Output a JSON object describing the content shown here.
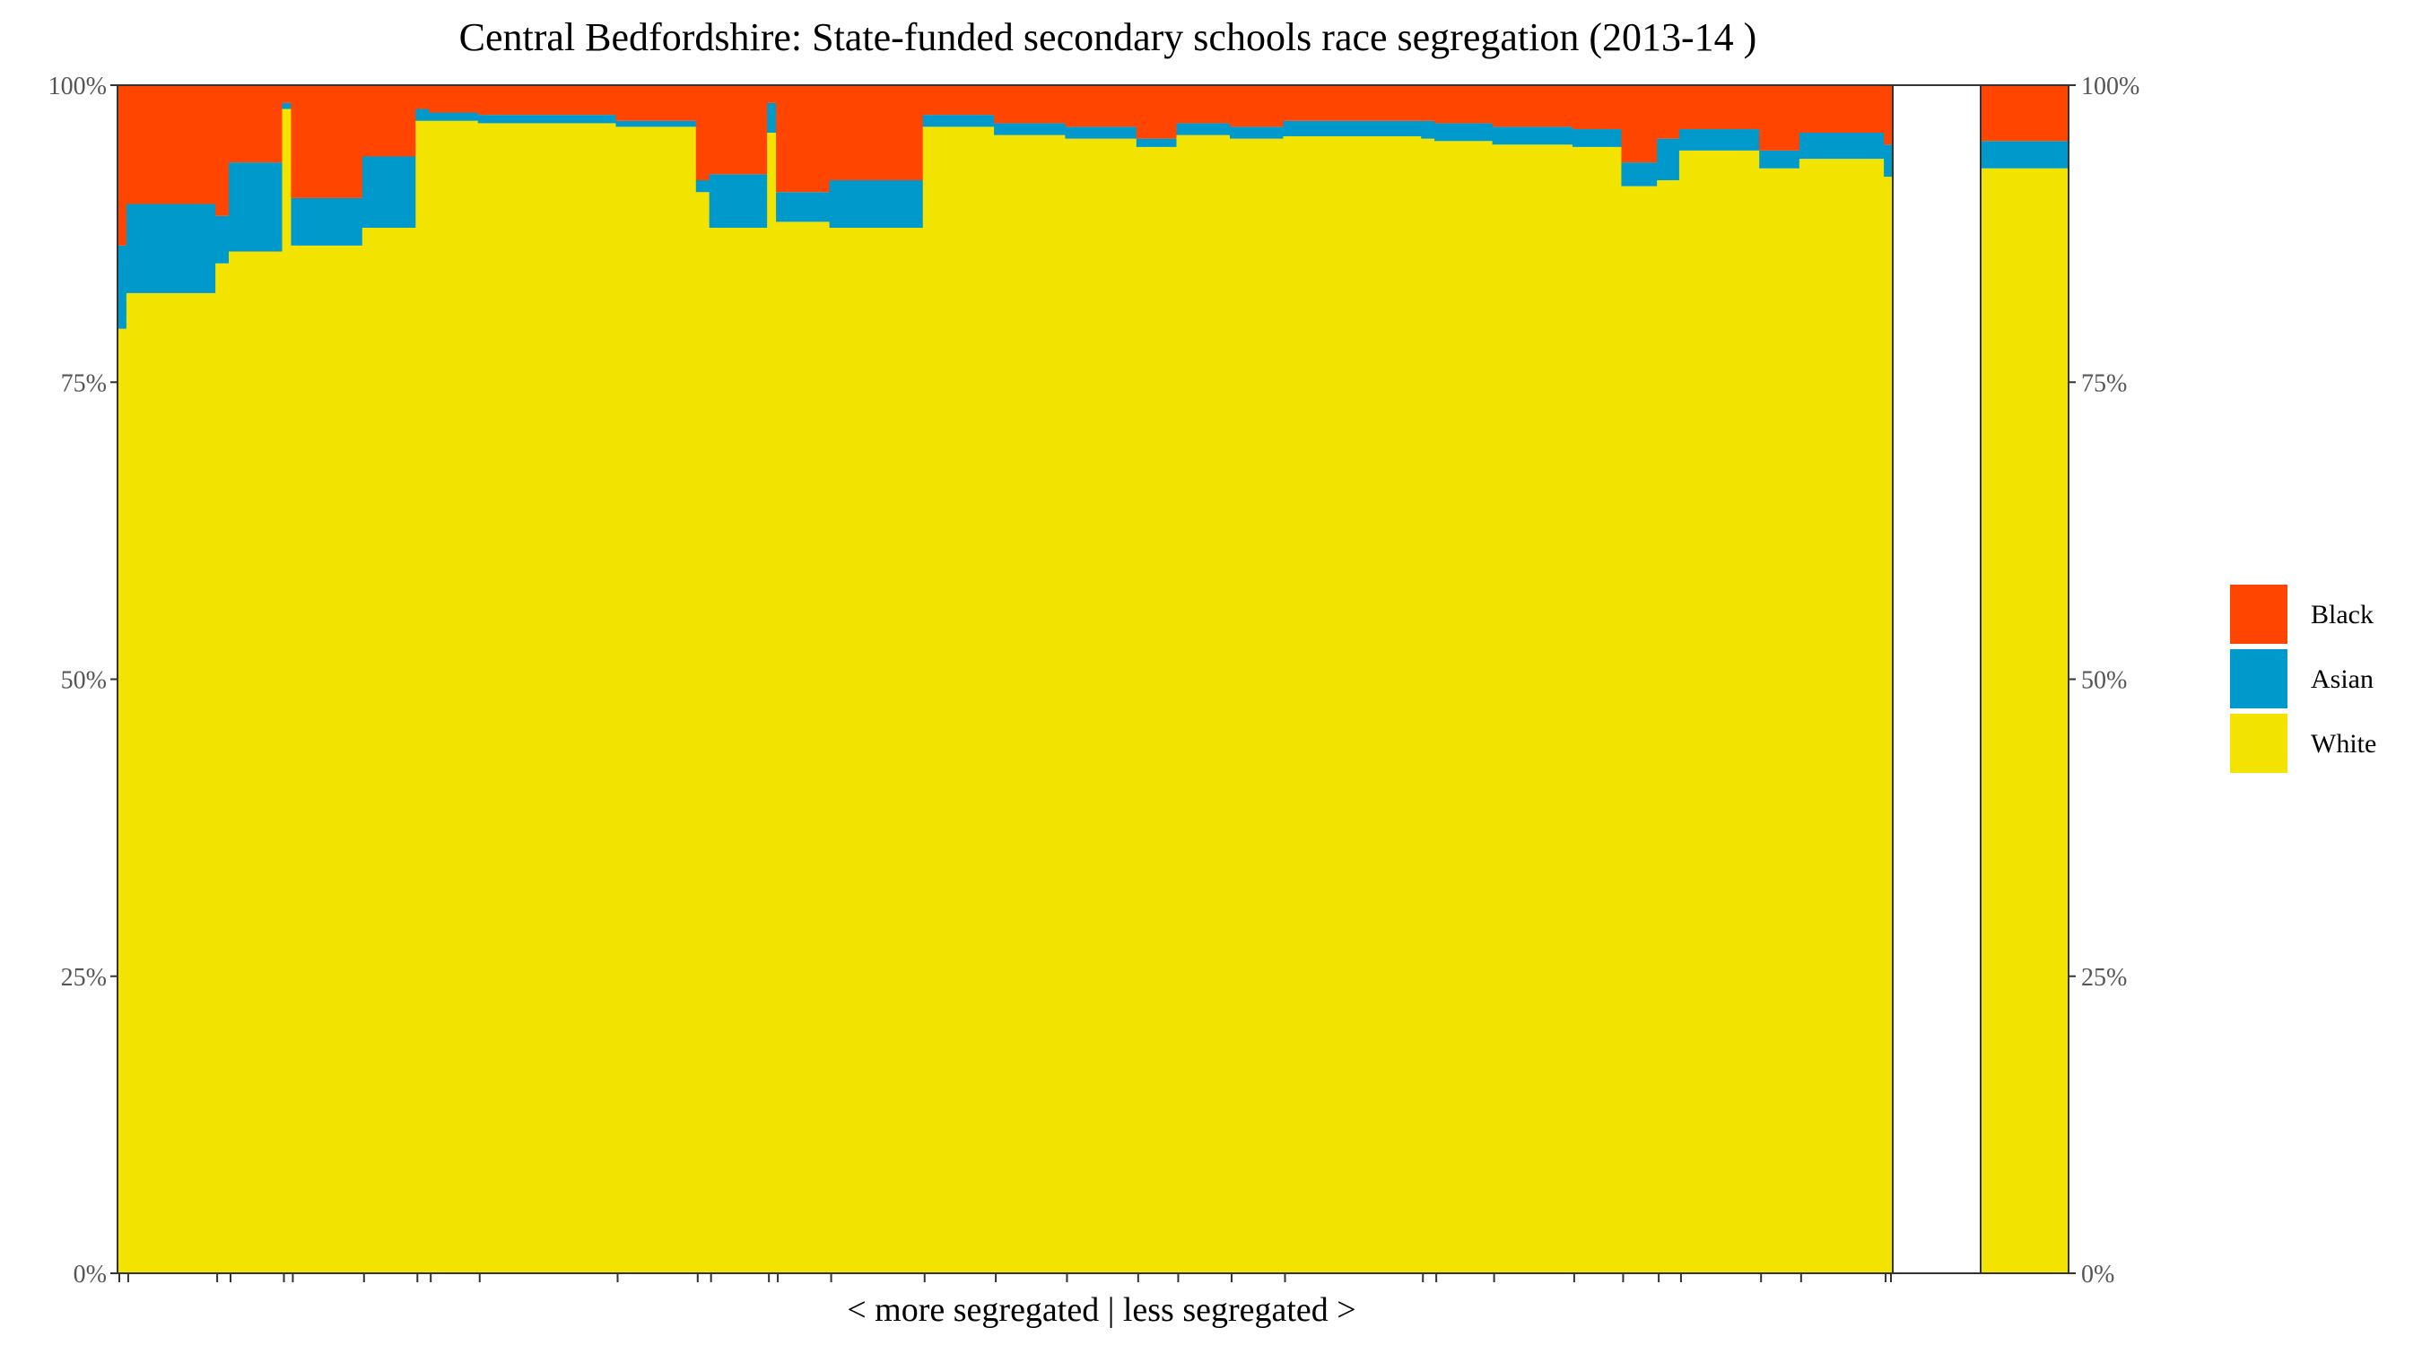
{
  "chart_data": {
    "type": "bar",
    "title": "Central Bedfordshire: State-funded secondary schools race segregation (2013-14 )",
    "xlabel": "< more segregated | less segregated >",
    "ylabel": "",
    "ylim": [
      0,
      100
    ],
    "y_ticks": [
      "0%",
      "25%",
      "50%",
      "75%",
      "100%"
    ],
    "grid": false,
    "legend_position": "right",
    "legend": [
      {
        "name": "Black",
        "color": "#FF4500"
      },
      {
        "name": "Asian",
        "color": "#0099CC"
      },
      {
        "name": "White",
        "color": "#F2E400"
      }
    ],
    "series_order": [
      "White",
      "Asian",
      "Black"
    ],
    "schools": [
      {
        "width": 1.0,
        "white": 79.5,
        "asian": 7.0,
        "black": 13.5
      },
      {
        "width": 10.0,
        "white": 82.5,
        "asian": 7.5,
        "black": 10.0
      },
      {
        "width": 1.5,
        "white": 85.0,
        "asian": 4.0,
        "black": 11.0
      },
      {
        "width": 6.0,
        "white": 86.0,
        "asian": 7.5,
        "black": 6.5
      },
      {
        "width": 1.0,
        "white": 98.0,
        "asian": 0.5,
        "black": 1.5
      },
      {
        "width": 8.0,
        "white": 86.5,
        "asian": 4.0,
        "black": 9.5
      },
      {
        "width": 6.0,
        "white": 88.0,
        "asian": 6.0,
        "black": 6.0
      },
      {
        "width": 1.5,
        "white": 97.0,
        "asian": 1.0,
        "black": 2.0
      },
      {
        "width": 5.5,
        "white": 97.0,
        "asian": 0.7,
        "black": 2.3
      },
      {
        "width": 15.5,
        "white": 96.8,
        "asian": 0.7,
        "black": 2.5
      },
      {
        "width": 9.0,
        "white": 96.5,
        "asian": 0.5,
        "black": 3.0
      },
      {
        "width": 1.5,
        "white": 91.0,
        "asian": 1.0,
        "black": 8.0
      },
      {
        "width": 6.5,
        "white": 88.0,
        "asian": 4.5,
        "black": 7.5
      },
      {
        "width": 1.0,
        "white": 96.0,
        "asian": 2.5,
        "black": 1.5
      },
      {
        "width": 6.0,
        "white": 88.5,
        "asian": 2.5,
        "black": 9.0
      },
      {
        "width": 10.5,
        "white": 88.0,
        "asian": 4.0,
        "black": 8.0
      },
      {
        "width": 8.0,
        "white": 96.5,
        "asian": 1.0,
        "black": 2.5
      },
      {
        "width": 8.0,
        "white": 95.8,
        "asian": 1.0,
        "black": 3.2
      },
      {
        "width": 8.0,
        "white": 95.5,
        "asian": 1.0,
        "black": 3.5
      },
      {
        "width": 4.5,
        "white": 94.8,
        "asian": 0.7,
        "black": 4.5
      },
      {
        "width": 6.0,
        "white": 95.8,
        "asian": 1.0,
        "black": 3.2
      },
      {
        "width": 6.0,
        "white": 95.5,
        "asian": 1.0,
        "black": 3.5
      },
      {
        "width": 15.5,
        "white": 95.7,
        "asian": 1.3,
        "black": 3.0
      },
      {
        "width": 1.5,
        "white": 95.5,
        "asian": 1.5,
        "black": 3.0
      },
      {
        "width": 6.5,
        "white": 95.3,
        "asian": 1.5,
        "black": 3.2
      },
      {
        "width": 9.0,
        "white": 95.0,
        "asian": 1.5,
        "black": 3.5
      },
      {
        "width": 5.5,
        "white": 94.8,
        "asian": 1.5,
        "black": 3.7
      },
      {
        "width": 4.0,
        "white": 91.5,
        "asian": 2.0,
        "black": 6.5
      },
      {
        "width": 2.5,
        "white": 92.0,
        "asian": 3.5,
        "black": 4.5
      },
      {
        "width": 9.0,
        "white": 94.5,
        "asian": 1.8,
        "black": 3.7
      },
      {
        "width": 4.5,
        "white": 93.0,
        "asian": 1.5,
        "black": 5.5
      },
      {
        "width": 9.5,
        "white": 93.8,
        "asian": 2.2,
        "black": 4.0
      },
      {
        "width": 1.0,
        "white": 92.3,
        "asian": 2.7,
        "black": 5.0
      }
    ],
    "total": {
      "label": "",
      "white": 93.0,
      "asian": 2.3,
      "black": 4.7
    }
  }
}
